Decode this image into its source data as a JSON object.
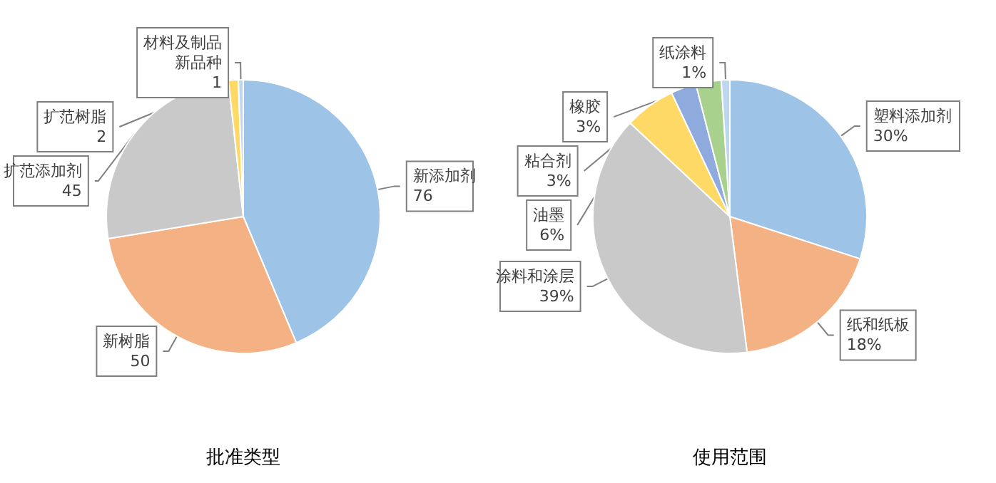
{
  "chart_data": [
    {
      "type": "pie",
      "title": "批准类型",
      "categories": [
        "新添加剂",
        "新树脂",
        "扩范添加剂",
        "扩范树脂",
        "材料及制品新品种"
      ],
      "values": [
        76,
        50,
        45,
        2,
        1
      ],
      "colors": [
        "#9dc3e6",
        "#f4b183",
        "#c9c9c9",
        "#ffd966",
        "#bdd7ee"
      ],
      "data_labels": true,
      "legend": false
    },
    {
      "type": "pie",
      "title": "使用范围",
      "categories": [
        "塑料添加剂",
        "纸和纸板",
        "涂料和涂层",
        "油墨",
        "粘合剂",
        "橡胶",
        "纸涂料"
      ],
      "values": [
        30,
        18,
        39,
        6,
        3,
        3,
        1
      ],
      "value_labels": [
        "30%",
        "18%",
        "39%",
        "6%",
        "3%",
        "3%",
        "1%"
      ],
      "colors": [
        "#9dc3e6",
        "#f4b183",
        "#c9c9c9",
        "#ffd966",
        "#8faadc",
        "#a9d18e",
        "#bdd7ee"
      ],
      "legend": false
    }
  ]
}
